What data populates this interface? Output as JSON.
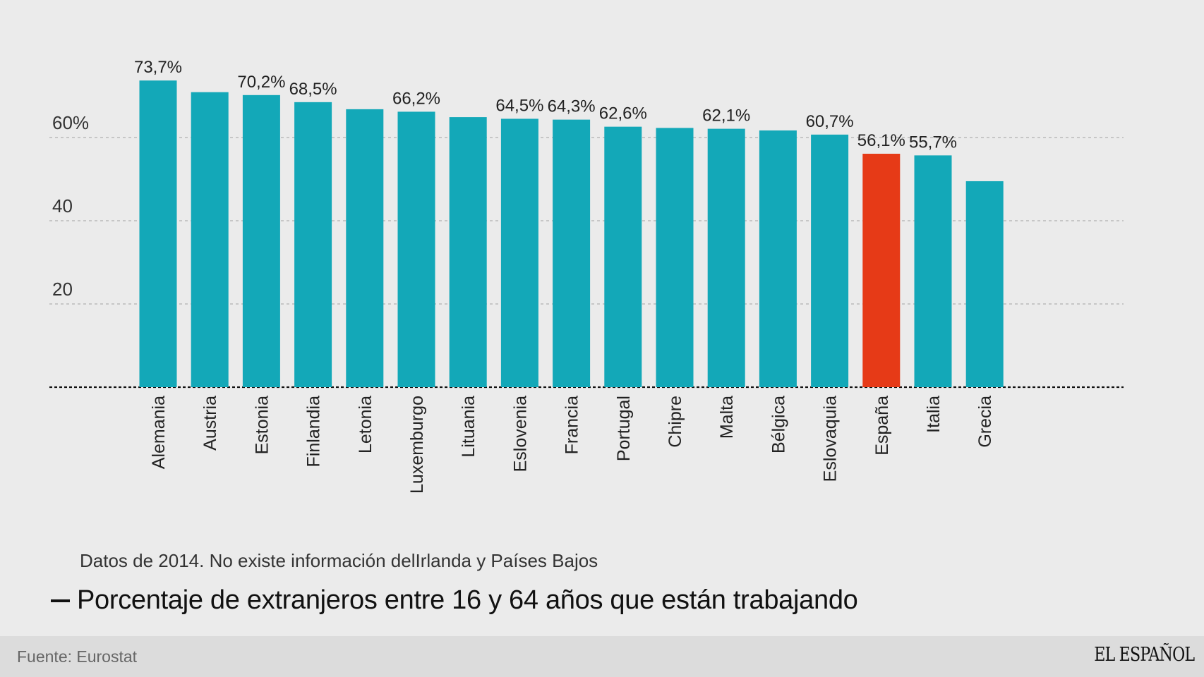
{
  "chart_data": {
    "type": "bar",
    "title": "Porcentaje de extranjeros entre 16 y 64 años que están trabajando",
    "note": "Datos de 2014. No existe información delIrlanda y Países Bajos",
    "categories": [
      "Alemania",
      "Austria",
      "Estonia",
      "Finlandia",
      "Letonia",
      "Luxemburgo",
      "Lituania",
      "Eslovenia",
      "Francia",
      "Portugal",
      "Chipre",
      "Malta",
      "Bélgica",
      "Eslovaquia",
      "España",
      "Italia",
      "Grecia"
    ],
    "values": [
      73.7,
      70.9,
      70.2,
      68.5,
      66.8,
      66.2,
      64.9,
      64.5,
      64.3,
      62.6,
      62.3,
      62.1,
      61.7,
      60.7,
      56.1,
      55.7,
      49.5
    ],
    "labels": [
      "73,7%",
      "",
      "70,2%",
      "68,5%",
      "",
      "66,2%",
      "",
      "64,5%",
      "64,3%",
      "62,6%",
      "",
      "62,1%",
      "",
      "60,7%",
      "56,1%",
      "55,7%",
      ""
    ],
    "highlight": "España",
    "yticks": [
      20,
      40,
      60
    ],
    "ytick_labels": [
      "20",
      "40",
      "60%"
    ],
    "ylim": [
      0,
      80
    ],
    "grid": true,
    "colors": {
      "bar": "#13a8b8",
      "highlight": "#e63a17",
      "grid": "#b9b9b9",
      "baseline": "#111111"
    }
  },
  "footer": {
    "source": "Fuente: Eurostat",
    "brand": "EL ESPAÑOL"
  }
}
